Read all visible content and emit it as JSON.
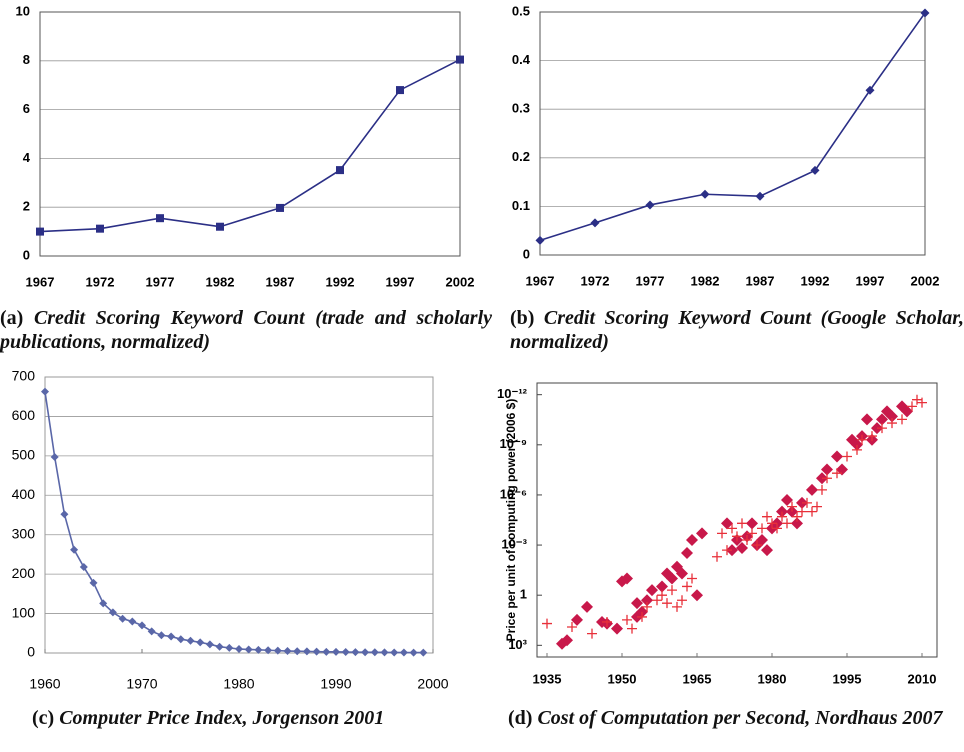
{
  "chart_data": [
    {
      "type": "line",
      "caption": {
        "label": "(a)",
        "text": "Credit Scoring Keyword Count (trade and scholarly publications, normalized)"
      },
      "categories": [
        "1967",
        "1972",
        "1977",
        "1982",
        "1987",
        "1992",
        "1997",
        "2002"
      ],
      "series": [
        {
          "color": "#2b2f86",
          "marker": "square",
          "values": [
            1.0,
            1.12,
            1.55,
            1.2,
            1.97,
            3.52,
            6.8,
            8.05
          ]
        }
      ],
      "ylim": [
        0,
        10
      ],
      "yticks": [
        0,
        2,
        4,
        6,
        8,
        10
      ],
      "grid": true
    },
    {
      "type": "line",
      "caption": {
        "label": "(b)",
        "text": "Credit Scoring Keyword Count (Google Scholar, normalized)"
      },
      "categories": [
        "1967",
        "1972",
        "1977",
        "1982",
        "1987",
        "1992",
        "1997",
        "2002"
      ],
      "series": [
        {
          "color": "#2b2f86",
          "marker": "diamond",
          "values": [
            0.03,
            0.066,
            0.103,
            0.125,
            0.121,
            0.174,
            0.339,
            0.498
          ]
        }
      ],
      "ylim": [
        0,
        0.5
      ],
      "yticks": [
        0,
        0.1,
        0.2,
        0.3,
        0.4,
        0.5
      ],
      "grid": true
    },
    {
      "type": "line",
      "caption": {
        "label": "(c)",
        "text": "Computer Price Index, Jorgenson 2001"
      },
      "series": [
        {
          "color": "#5a67a8",
          "marker": "diamond",
          "x": [
            1960,
            1961,
            1962,
            1963,
            1964,
            1965,
            1966,
            1967,
            1968,
            1969,
            1970,
            1971,
            1972,
            1973,
            1974,
            1975,
            1976,
            1977,
            1978,
            1979,
            1980,
            1981,
            1982,
            1983,
            1984,
            1985,
            1986,
            1987,
            1988,
            1989,
            1990,
            1991,
            1992,
            1993,
            1994,
            1995,
            1996,
            1997,
            1998,
            1999
          ],
          "values": [
            663,
            497,
            352,
            262,
            218,
            178,
            126,
            103,
            87,
            80,
            70,
            55,
            45,
            42,
            35,
            31,
            27,
            22,
            16,
            13,
            10,
            9,
            8,
            7,
            6,
            5,
            4.5,
            4,
            3.5,
            3,
            3,
            2.5,
            2.2,
            2,
            1.8,
            1.6,
            1.4,
            1.2,
            1.1,
            1
          ]
        }
      ],
      "xlim": [
        1960,
        2000
      ],
      "xticks": [
        1960,
        1970,
        1980,
        1990,
        2000
      ],
      "ylim": [
        0,
        700
      ],
      "yticks": [
        0,
        100,
        200,
        300,
        400,
        500,
        600,
        700
      ],
      "grid": true
    },
    {
      "type": "scatter",
      "caption": {
        "label": "(d)",
        "text": "Cost of Computation per Second, Nordhaus 2007"
      },
      "y_label": "Price per unit of computing power (2006 $)",
      "log_y": true,
      "series": [
        {
          "color": "#c8184a",
          "marker": "diamond",
          "x": [
            1938,
            1939,
            1941,
            1943,
            1946,
            1947,
            1949,
            1950,
            1951,
            1953,
            1953,
            1954,
            1955,
            1956,
            1958,
            1959,
            1960,
            1961,
            1962,
            1963,
            1964,
            1965,
            1966,
            1971,
            1972,
            1973,
            1974,
            1975,
            1976,
            1977,
            1978,
            1979,
            1980,
            1981,
            1982,
            1983,
            1984,
            1985,
            1986,
            1988,
            1990,
            1991,
            1993,
            1994,
            1996,
            1997,
            1998,
            1999,
            2000,
            2001,
            2002,
            2003,
            2004,
            2006,
            2007
          ],
          "values": [
            800,
            500,
            30,
            5,
            40,
            50,
            100,
            0.15,
            0.1,
            3,
            20,
            10,
            2,
            0.5,
            0.3,
            0.05,
            0.1,
            0.02,
            0.05,
            0.003,
            0.0005,
            1,
            0.0002,
            5e-05,
            0.002,
            0.0005,
            0.0015,
            0.0003,
            5e-05,
            0.001,
            0.0005,
            0.002,
            0.0001,
            5e-05,
            1e-05,
            2e-06,
            1e-05,
            5e-05,
            3e-06,
            5e-07,
            1e-07,
            3e-08,
            5e-09,
            3e-08,
            5e-10,
            1e-09,
            3e-10,
            3e-11,
            5e-10,
            1e-10,
            3e-11,
            1e-11,
            2e-11,
            5e-12,
            1e-11
          ]
        },
        {
          "color": "#e8303a",
          "marker": "plus",
          "x": [
            1935,
            1940,
            1944,
            1947,
            1951,
            1952,
            1954,
            1955,
            1957,
            1958,
            1959,
            1960,
            1961,
            1962,
            1963,
            1964,
            1969,
            1970,
            1971,
            1972,
            1973,
            1974,
            1975,
            1976,
            1977,
            1978,
            1979,
            1980,
            1981,
            1982,
            1983,
            1984,
            1985,
            1986,
            1987,
            1988,
            1989,
            1990,
            1991,
            1993,
            1995,
            1997,
            1998,
            2000,
            2002,
            2004,
            2006,
            2008,
            2009,
            2010
          ],
          "values": [
            50,
            80,
            200,
            40,
            30,
            100,
            20,
            5,
            2,
            1,
            3,
            0.5,
            5,
            2,
            0.3,
            0.1,
            0.005,
            0.0002,
            0.002,
            0.0001,
            0.0003,
            5e-05,
            0.0005,
            0.0002,
            0.001,
            0.0001,
            2e-05,
            5e-05,
            0.0001,
            2e-05,
            5e-05,
            5e-06,
            2e-05,
            1e-05,
            3e-06,
            1e-05,
            5e-06,
            5e-07,
            1e-07,
            5e-08,
            5e-09,
            2e-09,
            5e-10,
            3e-10,
            1e-10,
            5e-11,
            3e-11,
            5e-12,
            2e-12,
            3e-12
          ]
        }
      ],
      "xlim": [
        1933,
        2013
      ],
      "xticks": [
        1935,
        1950,
        1965,
        1980,
        1995,
        2010
      ],
      "ylim": [
        5000,
        2e-13
      ],
      "yticks": [
        {
          "value": 1000,
          "label": "10³"
        },
        1,
        {
          "value": 0.001,
          "label": "10⁻³"
        },
        {
          "value": 1e-06,
          "label": "10⁻⁶"
        },
        {
          "value": 1e-09,
          "label": "10⁻⁹"
        },
        {
          "value": 1e-12,
          "label": "10⁻¹²"
        }
      ],
      "grid": false
    }
  ]
}
